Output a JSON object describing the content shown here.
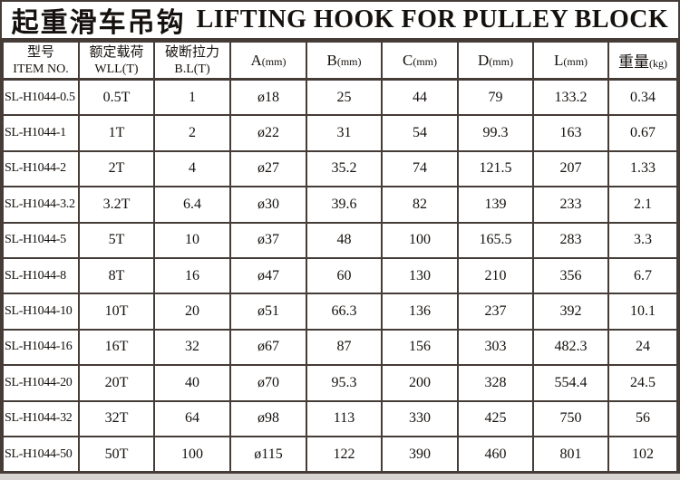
{
  "title": {
    "zh": "起重滑车吊钩",
    "en": "LIFTING HOOK FOR PULLEY BLOCK"
  },
  "table": {
    "columns": [
      {
        "line1": "型号",
        "line2": "ITEM NO."
      },
      {
        "line1": "额定载荷",
        "line2": "WLL(T)"
      },
      {
        "line1": "破断拉力",
        "line2": "B.L(T)"
      },
      {
        "main": "A",
        "unit": "(mm)"
      },
      {
        "main": "B",
        "unit": "(mm)"
      },
      {
        "main": "C",
        "unit": "(mm)"
      },
      {
        "main": "D",
        "unit": "(mm)"
      },
      {
        "main": "L",
        "unit": "(mm)"
      },
      {
        "main": "重量",
        "unit": "(kg)"
      }
    ],
    "rows": [
      [
        "SL-H1044-0.5",
        "0.5T",
        "1",
        "ø18",
        "25",
        "44",
        "79",
        "133.2",
        "0.34"
      ],
      [
        "SL-H1044-1",
        "1T",
        "2",
        "ø22",
        "31",
        "54",
        "99.3",
        "163",
        "0.67"
      ],
      [
        "SL-H1044-2",
        "2T",
        "4",
        "ø27",
        "35.2",
        "74",
        "121.5",
        "207",
        "1.33"
      ],
      [
        "SL-H1044-3.2",
        "3.2T",
        "6.4",
        "ø30",
        "39.6",
        "82",
        "139",
        "233",
        "2.1"
      ],
      [
        "SL-H1044-5",
        "5T",
        "10",
        "ø37",
        "48",
        "100",
        "165.5",
        "283",
        "3.3"
      ],
      [
        "SL-H1044-8",
        "8T",
        "16",
        "ø47",
        "60",
        "130",
        "210",
        "356",
        "6.7"
      ],
      [
        "SL-H1044-10",
        "10T",
        "20",
        "ø51",
        "66.3",
        "136",
        "237",
        "392",
        "10.1"
      ],
      [
        "SL-H1044-16",
        "16T",
        "32",
        "ø67",
        "87",
        "156",
        "303",
        "482.3",
        "24"
      ],
      [
        "SL-H1044-20",
        "20T",
        "40",
        "ø70",
        "95.3",
        "200",
        "328",
        "554.4",
        "24.5"
      ],
      [
        "SL-H1044-32",
        "32T",
        "64",
        "ø98",
        "113",
        "330",
        "425",
        "750",
        "56"
      ],
      [
        "SL-H1044-50",
        "50T",
        "100",
        "ø115",
        "122",
        "390",
        "460",
        "801",
        "102"
      ]
    ]
  },
  "colors": {
    "border": "#453c38",
    "text": "#15110e",
    "bottom_strip": "#d8d4d1"
  }
}
